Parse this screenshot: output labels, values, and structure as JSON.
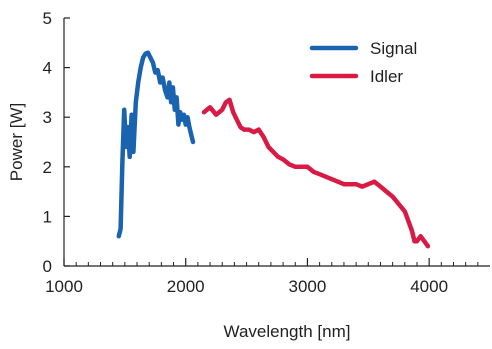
{
  "chart_data": {
    "type": "line",
    "xlabel": "Wavelength [nm]",
    "ylabel": "Power [W]",
    "xlim": [
      1000,
      4500
    ],
    "ylim": [
      0,
      5
    ],
    "x_ticks": [
      1000,
      2000,
      3000,
      4000
    ],
    "x_tick_labels": [
      "1000",
      "2000",
      "3000",
      "4000"
    ],
    "x_minor_step": 100,
    "y_ticks": [
      0,
      1,
      2,
      3,
      4,
      5
    ],
    "y_tick_labels": [
      "0",
      "1",
      "2",
      "3",
      "4",
      "5"
    ],
    "grid": false,
    "legend_position": "top-right",
    "series": [
      {
        "name": "Signal",
        "color": "#1a63b0",
        "x": [
          1450,
          1465,
          1480,
          1495,
          1510,
          1525,
          1540,
          1555,
          1570,
          1590,
          1610,
          1630,
          1650,
          1670,
          1690,
          1710,
          1730,
          1750,
          1770,
          1790,
          1810,
          1830,
          1850,
          1865,
          1880,
          1895,
          1910,
          1925,
          1940,
          1955,
          1970,
          1985,
          2000,
          2015,
          2030,
          2045,
          2060
        ],
        "y": [
          0.6,
          0.75,
          2.1,
          3.15,
          2.4,
          2.8,
          2.2,
          3.05,
          2.3,
          3.3,
          3.7,
          4.0,
          4.2,
          4.28,
          4.3,
          4.2,
          4.1,
          3.9,
          3.95,
          3.7,
          3.8,
          3.55,
          3.4,
          3.7,
          3.3,
          3.6,
          3.15,
          3.4,
          2.85,
          3.1,
          2.95,
          3.05,
          2.85,
          3.0,
          2.8,
          2.65,
          2.5
        ]
      },
      {
        "name": "Idler",
        "color": "#d81b45",
        "x": [
          2150,
          2200,
          2250,
          2300,
          2330,
          2360,
          2390,
          2420,
          2450,
          2480,
          2520,
          2560,
          2600,
          2640,
          2680,
          2720,
          2760,
          2800,
          2850,
          2900,
          2950,
          3000,
          3050,
          3100,
          3150,
          3200,
          3250,
          3300,
          3350,
          3400,
          3450,
          3500,
          3550,
          3600,
          3650,
          3700,
          3750,
          3800,
          3830,
          3860,
          3880,
          3900,
          3930,
          3960,
          3990
        ],
        "y": [
          3.1,
          3.2,
          3.05,
          3.15,
          3.3,
          3.35,
          3.1,
          2.95,
          2.8,
          2.75,
          2.75,
          2.7,
          2.75,
          2.6,
          2.4,
          2.3,
          2.2,
          2.15,
          2.05,
          2.0,
          2.0,
          2.0,
          1.9,
          1.85,
          1.8,
          1.75,
          1.7,
          1.65,
          1.65,
          1.65,
          1.6,
          1.65,
          1.7,
          1.6,
          1.5,
          1.4,
          1.25,
          1.1,
          0.9,
          0.7,
          0.5,
          0.5,
          0.6,
          0.5,
          0.4
        ]
      }
    ]
  }
}
